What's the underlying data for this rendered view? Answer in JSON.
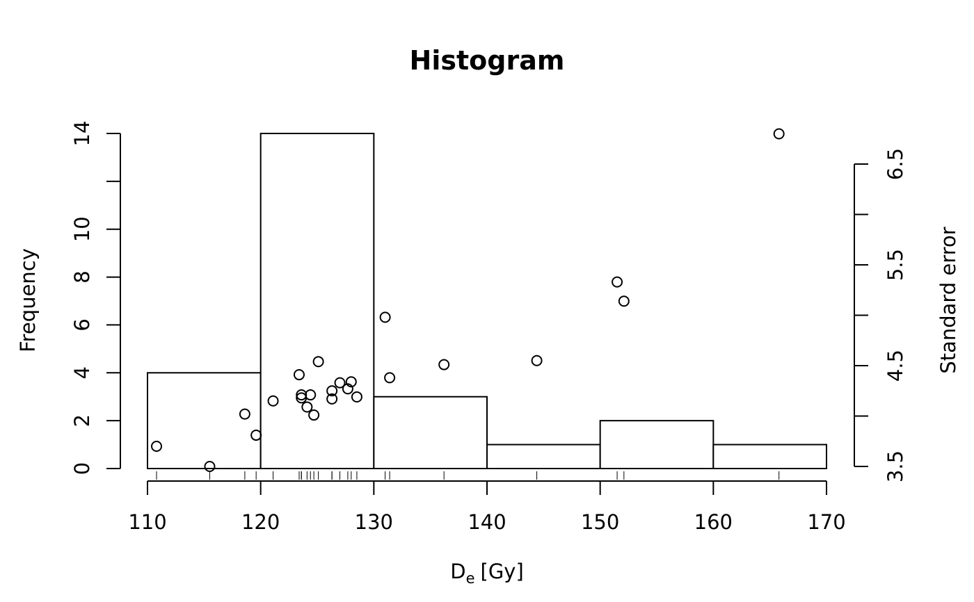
{
  "chart_data": {
    "type": "bar",
    "title": "Histogram",
    "xlabel": "D",
    "xlabel_subscript": "e",
    "xlabel_unit": "[Gy]",
    "ylabel": "Frequency",
    "ylabel_right": "Standard error",
    "xlim": [
      110,
      170
    ],
    "ylim": [
      0,
      14
    ],
    "y2lim": [
      3.5,
      6.5
    ],
    "x_ticks": [
      "110",
      "120",
      "130",
      "140",
      "150",
      "160",
      "170"
    ],
    "x_tick_values": [
      110,
      120,
      130,
      140,
      150,
      160,
      170
    ],
    "y_ticks": [
      "0",
      "2",
      "4",
      "6",
      "8",
      "10",
      "",
      "14"
    ],
    "y_tick_values": [
      0,
      2,
      4,
      6,
      8,
      10,
      12,
      14
    ],
    "y2_ticks": [
      "3.5",
      "",
      "4.5",
      "",
      "5.5",
      "",
      "6.5"
    ],
    "y2_tick_values": [
      3.5,
      4.0,
      4.5,
      5.0,
      5.5,
      6.0,
      6.5
    ],
    "grid": false,
    "bins": [
      {
        "from": 110,
        "to": 120,
        "count": 4
      },
      {
        "from": 120,
        "to": 130,
        "count": 14
      },
      {
        "from": 130,
        "to": 140,
        "count": 3
      },
      {
        "from": 140,
        "to": 150,
        "count": 1
      },
      {
        "from": 150,
        "to": 160,
        "count": 2
      },
      {
        "from": 160,
        "to": 170,
        "count": 1
      }
    ],
    "points": [
      {
        "x": 110.8,
        "se": 3.7
      },
      {
        "x": 115.5,
        "se": 3.5
      },
      {
        "x": 118.6,
        "se": 4.02
      },
      {
        "x": 119.6,
        "se": 3.81
      },
      {
        "x": 121.1,
        "se": 4.15
      },
      {
        "x": 123.4,
        "se": 4.41
      },
      {
        "x": 123.6,
        "se": 4.18
      },
      {
        "x": 123.6,
        "se": 4.21
      },
      {
        "x": 124.1,
        "se": 4.09
      },
      {
        "x": 124.4,
        "se": 4.21
      },
      {
        "x": 124.7,
        "se": 4.01
      },
      {
        "x": 125.1,
        "se": 4.54
      },
      {
        "x": 126.3,
        "se": 4.17
      },
      {
        "x": 126.3,
        "se": 4.25
      },
      {
        "x": 127.0,
        "se": 4.33
      },
      {
        "x": 127.7,
        "se": 4.27
      },
      {
        "x": 128.0,
        "se": 4.34
      },
      {
        "x": 128.5,
        "se": 4.19
      },
      {
        "x": 131.0,
        "se": 4.98
      },
      {
        "x": 131.4,
        "se": 4.38
      },
      {
        "x": 136.2,
        "se": 4.51
      },
      {
        "x": 144.4,
        "se": 4.55
      },
      {
        "x": 151.5,
        "se": 5.33
      },
      {
        "x": 152.1,
        "se": 5.14
      },
      {
        "x": 165.8,
        "se": 6.8
      }
    ]
  }
}
